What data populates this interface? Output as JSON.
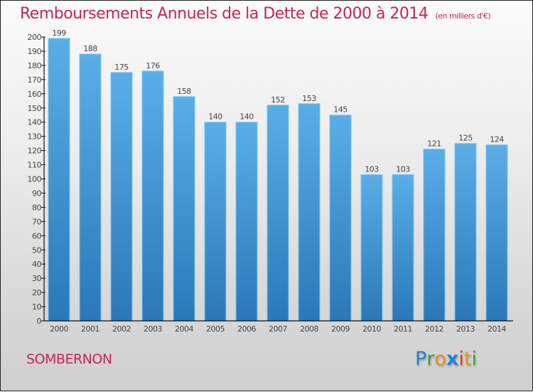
{
  "title": "Remboursements Annuels de la Dette de 2000 à 2014",
  "subtitle": "(en milliers d'€)",
  "commune": "SOMBERNON",
  "logo": {
    "letters": [
      {
        "char": "P",
        "color": "#2a7fd4"
      },
      {
        "char": "r",
        "color": "#3aa040"
      },
      {
        "char": "o",
        "color": "#f08a1c"
      },
      {
        "char": "x",
        "color": "#2a7fd4"
      },
      {
        "char": "i",
        "color": "#e03a2a"
      },
      {
        "char": "t",
        "color": "#f08a1c"
      },
      {
        "char": "i",
        "color": "#3aa040"
      }
    ]
  },
  "colors": {
    "title": "#c4245a",
    "bar_top": "#5aaee8",
    "bar_bottom": "#2a78b8",
    "bar_edge": "#7cc4f4"
  },
  "chart_data": {
    "type": "bar",
    "title": "Remboursements Annuels de la Dette de 2000 à 2014",
    "subtitle": "(en milliers d'€)",
    "xlabel": "",
    "ylabel": "",
    "categories": [
      "2000",
      "2001",
      "2002",
      "2003",
      "2004",
      "2005",
      "2006",
      "2007",
      "2008",
      "2009",
      "2010",
      "2011",
      "2012",
      "2013",
      "2014"
    ],
    "values": [
      199,
      188,
      175,
      176,
      158,
      140,
      140,
      152,
      153,
      145,
      103,
      103,
      121,
      125,
      124
    ],
    "ylim": [
      0,
      200
    ],
    "yticks": [
      0,
      10,
      20,
      30,
      40,
      50,
      60,
      70,
      80,
      90,
      100,
      110,
      120,
      130,
      140,
      150,
      160,
      170,
      180,
      190,
      200
    ],
    "grid": false,
    "legend": "none",
    "data_labels": true
  }
}
